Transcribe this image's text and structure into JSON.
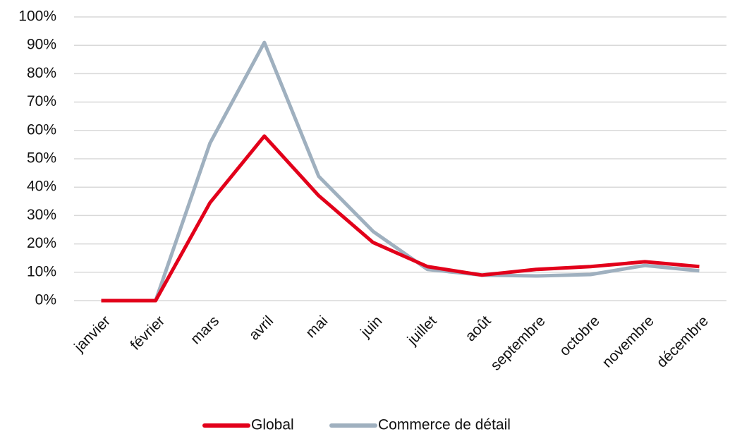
{
  "chart_data": {
    "type": "line",
    "categories": [
      "janvier",
      "février",
      "mars",
      "avril",
      "mai",
      "juin",
      "juillet",
      "août",
      "septembre",
      "octobre",
      "novembre",
      "décembre"
    ],
    "series": [
      {
        "name": "Global",
        "color": "#e2001a",
        "values": [
          0,
          0,
          34.5,
          58,
          37,
          20.5,
          12,
          9,
          11,
          12,
          13.7,
          12
        ]
      },
      {
        "name": "Commerce de détail",
        "color": "#9fb0bf",
        "values": [
          0,
          0,
          55.5,
          91,
          43.8,
          24.4,
          11,
          9,
          8.7,
          9.2,
          12.4,
          10.5
        ]
      }
    ],
    "ylim": [
      0,
      100
    ],
    "yticks": [
      {
        "value": 0,
        "label": "0%"
      },
      {
        "value": 10,
        "label": "10%"
      },
      {
        "value": 20,
        "label": "20%"
      },
      {
        "value": 30,
        "label": "30%"
      },
      {
        "value": 40,
        "label": "40%"
      },
      {
        "value": 50,
        "label": "50%"
      },
      {
        "value": 60,
        "label": "60%"
      },
      {
        "value": 70,
        "label": "70%"
      },
      {
        "value": 80,
        "label": "80%"
      },
      {
        "value": 90,
        "label": "90%"
      },
      {
        "value": 100,
        "label": "100%"
      }
    ],
    "grid": true,
    "legend": "bottom"
  }
}
